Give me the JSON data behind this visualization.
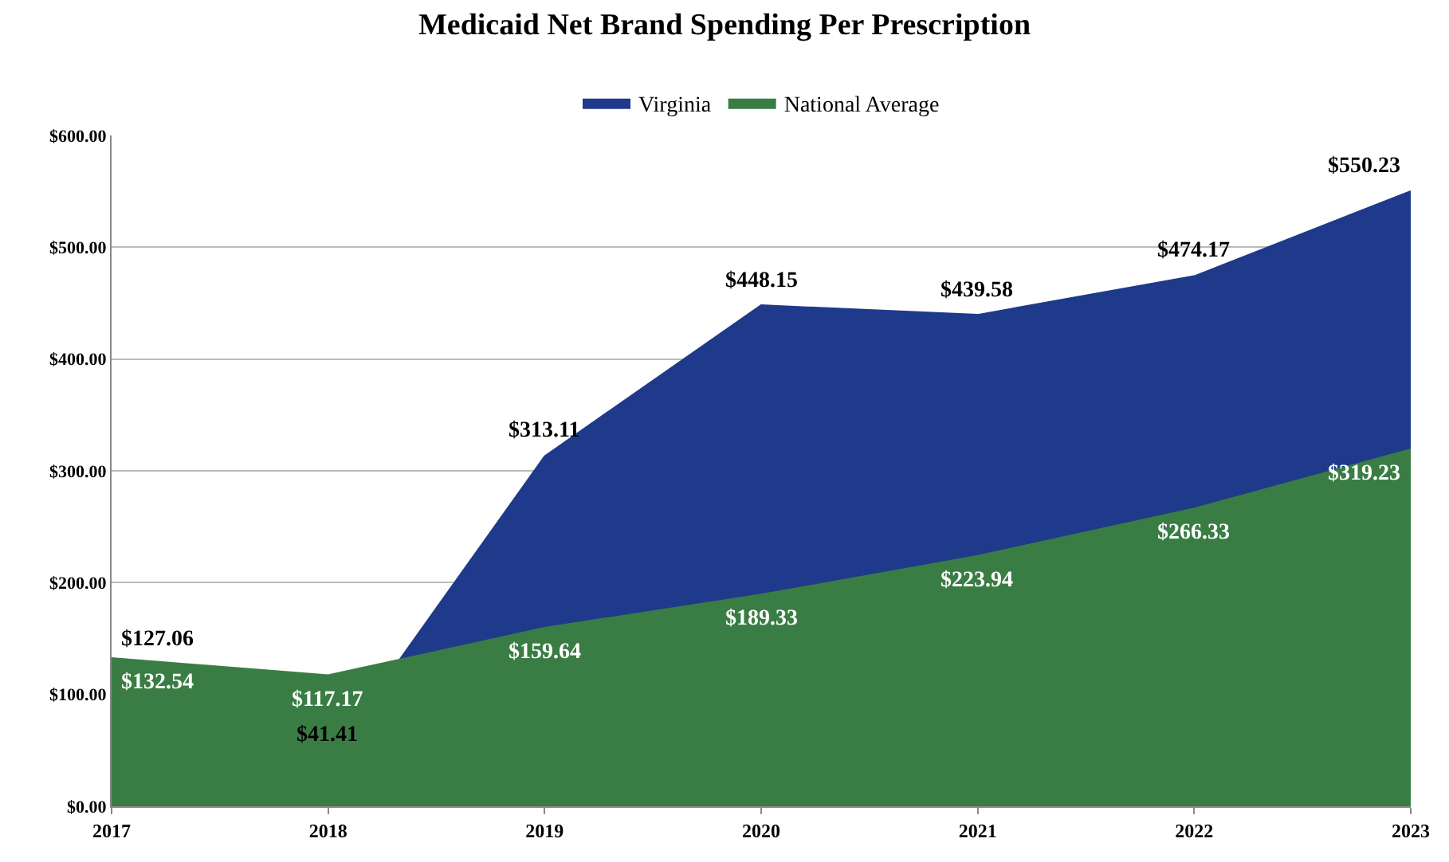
{
  "chart_data": {
    "type": "area",
    "title": "Medicaid Net Brand Spending Per Prescription",
    "categories": [
      "2017",
      "2018",
      "2019",
      "2020",
      "2021",
      "2022",
      "2023"
    ],
    "series": [
      {
        "name": "Virginia",
        "color": "#1f3a8a",
        "values": [
          127.06,
          41.41,
          313.11,
          448.15,
          439.58,
          474.17,
          550.23
        ],
        "value_labels": [
          "$127.06",
          "$41.41",
          "$313.11",
          "$448.15",
          "$439.58",
          "$474.17",
          "$550.23"
        ]
      },
      {
        "name": "National Average",
        "color": "#3a7d44",
        "values": [
          132.54,
          117.17,
          159.64,
          189.33,
          223.94,
          266.33,
          319.23
        ],
        "value_labels": [
          "$132.54",
          "$117.17",
          "$159.64",
          "$189.33",
          "$223.94",
          "$266.33",
          "$319.23"
        ]
      }
    ],
    "ylim": [
      0,
      600
    ],
    "yticks": [
      {
        "value": 0,
        "label": "$0.00"
      },
      {
        "value": 100,
        "label": "$100.00"
      },
      {
        "value": 200,
        "label": "$200.00"
      },
      {
        "value": 300,
        "label": "$300.00"
      },
      {
        "value": 400,
        "label": "$400.00"
      },
      {
        "value": 500,
        "label": "$500.00"
      },
      {
        "value": 600,
        "label": "$600.00"
      }
    ],
    "grid": "y",
    "legend": "top"
  }
}
